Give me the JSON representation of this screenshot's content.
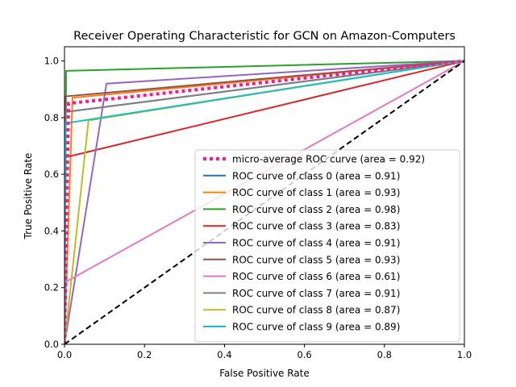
{
  "chart_data": {
    "type": "line",
    "title": "Receiver Operating Characteristic for GCN on Amazon-Computers",
    "xlabel": "False Positive Rate",
    "ylabel": "True Positive Rate",
    "xlim": [
      0.0,
      1.0
    ],
    "ylim": [
      0.0,
      1.05
    ],
    "xticks": [
      "0.0",
      "0.2",
      "0.4",
      "0.6",
      "0.8",
      "1.0"
    ],
    "yticks": [
      "0.0",
      "0.2",
      "0.4",
      "0.6",
      "0.8",
      "1.0"
    ],
    "grid": false,
    "legend_position": "lower right",
    "series": [
      {
        "name": "micro-average ROC curve (area = 0.92)",
        "color": "#ff1493",
        "style": "dotted",
        "x": [
          0,
          0.01,
          1
        ],
        "y": [
          0,
          0.85,
          1
        ]
      },
      {
        "name": "ROC curve of class 0 (area = 0.91)",
        "color": "#1f77b4",
        "style": "solid",
        "x": [
          0,
          0.003,
          1
        ],
        "y": [
          0,
          0.82,
          1
        ]
      },
      {
        "name": "ROC curve of class 1 (area = 0.93)",
        "color": "#ff7f0e",
        "style": "solid",
        "x": [
          0,
          0.02,
          1
        ],
        "y": [
          0,
          0.87,
          1
        ]
      },
      {
        "name": "ROC curve of class 2 (area = 0.98)",
        "color": "#2ca02c",
        "style": "solid",
        "x": [
          0,
          0.004,
          1
        ],
        "y": [
          0,
          0.965,
          1
        ]
      },
      {
        "name": "ROC curve of class 3 (area = 0.83)",
        "color": "#d62728",
        "style": "solid",
        "x": [
          0,
          0.003,
          1
        ],
        "y": [
          0,
          0.66,
          1
        ]
      },
      {
        "name": "ROC curve of class 4 (area = 0.91)",
        "color": "#9467bd",
        "style": "solid",
        "x": [
          0,
          0.105,
          1
        ],
        "y": [
          0,
          0.92,
          1
        ]
      },
      {
        "name": "ROC curve of class 5 (area = 0.93)",
        "color": "#8c564b",
        "style": "solid",
        "x": [
          0,
          0.003,
          1
        ],
        "y": [
          0,
          0.875,
          1
        ]
      },
      {
        "name": "ROC curve of class 6 (area = 0.61)",
        "color": "#e377c2",
        "style": "solid",
        "x": [
          0,
          0.003,
          1
        ],
        "y": [
          0,
          0.22,
          1
        ]
      },
      {
        "name": "ROC curve of class 7 (area = 0.91)",
        "color": "#7f7f7f",
        "style": "solid",
        "x": [
          0,
          0.003,
          1
        ],
        "y": [
          0,
          0.82,
          1
        ]
      },
      {
        "name": "ROC curve of class 8 (area = 0.87)",
        "color": "#bcbd22",
        "style": "solid",
        "x": [
          0,
          0.06,
          1
        ],
        "y": [
          0,
          0.79,
          1
        ]
      },
      {
        "name": "ROC curve of class 9 (area = 0.89)",
        "color": "#17becf",
        "style": "solid",
        "x": [
          0,
          0.003,
          1
        ],
        "y": [
          0,
          0.78,
          1
        ]
      }
    ],
    "reference_line": {
      "x": [
        0,
        1
      ],
      "y": [
        0,
        1
      ],
      "color": "#000000",
      "style": "dashed"
    }
  }
}
